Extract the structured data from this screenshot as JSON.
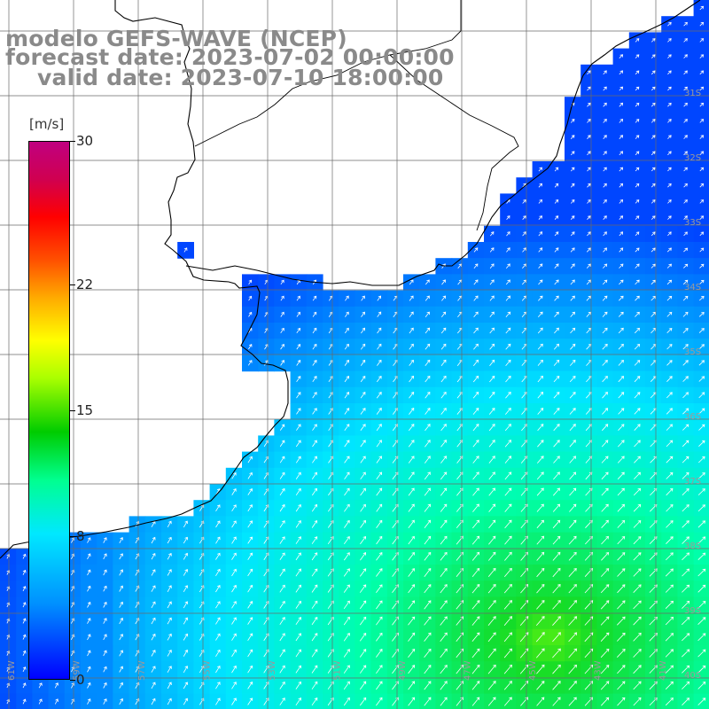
{
  "title": {
    "line1": "modelo GEFS-WAVE (NCEP)",
    "line2": "forecast date: 2023-07-02 00:00:00",
    "line3": "valid date: 2023-07-10 18:00:00"
  },
  "colorbar": {
    "unit": "[m/s]",
    "min": 0,
    "max": 30,
    "ticks": [
      {
        "value": 30,
        "label": "30"
      },
      {
        "value": 22,
        "label": "22"
      },
      {
        "value": 15,
        "label": "15"
      },
      {
        "value": 8,
        "label": "8"
      },
      {
        "value": 0,
        "label": "0"
      }
    ]
  },
  "colors": {
    "land": "#ffffff",
    "grid": "#6a6a6a",
    "coastline": "#000000",
    "arrows": "#ffffff",
    "title_text": "#8a8a8a"
  },
  "map": {
    "variable": "wind speed and direction",
    "longitude_labels": [
      "61W",
      "59W",
      "57W",
      "55W",
      "53W",
      "51W",
      "49W",
      "47W",
      "45W",
      "43W",
      "41W"
    ],
    "latitude_labels": [
      "31S",
      "32S",
      "33S",
      "34S",
      "35S",
      "36S",
      "37S",
      "38S",
      "39S",
      "40S"
    ]
  }
}
